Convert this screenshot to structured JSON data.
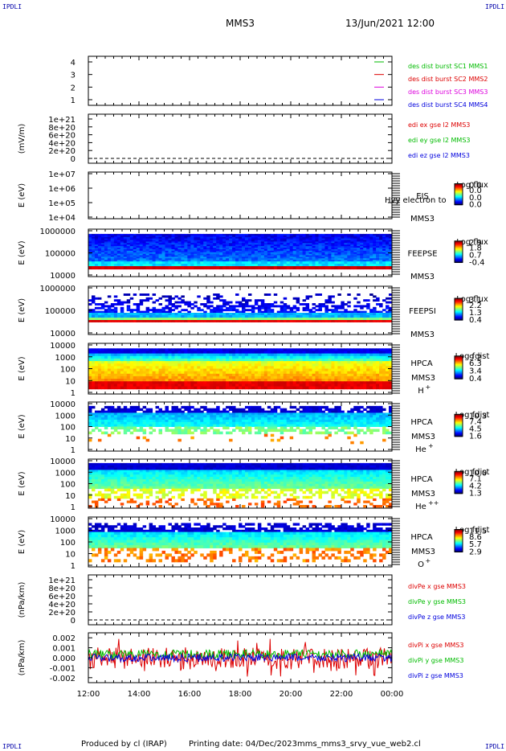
{
  "header": {
    "corner_tl": "IPDLI",
    "corner_tr": "IPDLI",
    "corner_bl": "IPDLI",
    "corner_br": "IPDLI",
    "title": "MMS3",
    "datetime": "13/Jun/2021 12:00"
  },
  "footer": {
    "produced": "Produced by cl (IRAP)",
    "printing": "Printing date: 04/Dec/2023",
    "filename": "mms_mms3_srvy_vue_web2.cl"
  },
  "chart_data": [
    {
      "type": "line",
      "id": "sc",
      "ylabel": "",
      "yticks": [
        "1",
        "2",
        "3",
        "4"
      ],
      "ylim": [
        0.5,
        4.5
      ],
      "legend": [
        {
          "name": "des dist burst SC1 MMS1",
          "color": "#00bb00",
          "y": 4
        },
        {
          "name": "des dist burst SC2 MMS2",
          "color": "#dd0000",
          "y": 3
        },
        {
          "name": "des dist burst SC3 MMS3",
          "color": "#dd00dd",
          "y": 2
        },
        {
          "name": "des dist burst SC4 MMS4",
          "color": "#0000dd",
          "y": 1
        }
      ],
      "series": [
        {
          "name": "des dist burst SC1 MMS1",
          "values": []
        },
        {
          "name": "des dist burst SC2 MMS2",
          "values": []
        },
        {
          "name": "des dist burst SC3 MMS3",
          "values": []
        },
        {
          "name": "des dist burst SC4 MMS4",
          "values": []
        }
      ]
    },
    {
      "type": "line",
      "id": "edi",
      "ylabel": "(mV/m)",
      "yticks": [
        "0",
        "2e+20",
        "4e+20",
        "6e+20",
        "8e+20",
        "1e+21"
      ],
      "ylim": [
        -5e+19,
        1.05e+21
      ],
      "legend": [
        {
          "name": "edi ex gse l2 MMS3",
          "color": "#dd0000"
        },
        {
          "name": "edi ey gse l2 MMS3",
          "color": "#00bb00"
        },
        {
          "name": "edi ez gse l2 MMS3",
          "color": "#0000dd"
        }
      ],
      "zero_line": true
    },
    {
      "type": "heatmap",
      "id": "eis",
      "ylabel": "E (eV)",
      "yticks": [
        "1e+04",
        "1e+05",
        "1e+06",
        "1e+07"
      ],
      "scale": "log",
      "labels": [
        "EIS",
        "MMS3"
      ],
      "overlay_text": "Hvy electron to",
      "colorbar_title": "Log flux",
      "colorbar_ticks": [
        "0.0",
        "0.0",
        "0.0",
        "0.0"
      ],
      "empty": true
    },
    {
      "type": "heatmap",
      "id": "feepse",
      "ylabel": "E (eV)",
      "yticks": [
        "10000",
        "100000",
        "1000000"
      ],
      "scale": "log",
      "labels": [
        "FEEPSE",
        "MMS3"
      ],
      "colorbar_title": "Log flux",
      "colorbar_ticks": [
        "2.9",
        "1.8",
        "0.7",
        "-0.4"
      ]
    },
    {
      "type": "heatmap",
      "id": "feepsi",
      "ylabel": "E (eV)",
      "yticks": [
        "10000",
        "100000",
        "1000000"
      ],
      "scale": "log",
      "labels": [
        "FEEPSI",
        "MMS3"
      ],
      "colorbar_title": "Log flux",
      "colorbar_ticks": [
        "3.1",
        "2.2",
        "1.3",
        "0.4"
      ]
    },
    {
      "type": "heatmap",
      "id": "hpca_h",
      "ylabel": "E (eV)",
      "yticks": [
        "1",
        "10",
        "100",
        "1000",
        "10000"
      ],
      "scale": "log",
      "labels": [
        "HPCA",
        "MMS3"
      ],
      "species": "H",
      "species_sup": "+",
      "colorbar_title": "Log fdist",
      "colorbar_ticks": [
        "9.2",
        "6.3",
        "3.4",
        "0.4"
      ]
    },
    {
      "type": "heatmap",
      "id": "hpca_he",
      "ylabel": "E (eV)",
      "yticks": [
        "1",
        "10",
        "100",
        "1000",
        "10000"
      ],
      "scale": "log",
      "labels": [
        "HPCA",
        "MMS3"
      ],
      "species": "He",
      "species_sup": "+",
      "colorbar_title": "Log fdist",
      "colorbar_ticks": [
        "10.3",
        "7.4",
        "4.5",
        "1.6"
      ]
    },
    {
      "type": "heatmap",
      "id": "hpca_hepp",
      "ylabel": "E (eV)",
      "yticks": [
        "1",
        "10",
        "100",
        "1000",
        "10000"
      ],
      "scale": "log",
      "labels": [
        "HPCA",
        "MMS3"
      ],
      "species": "He",
      "species_sup": "++",
      "colorbar_title": "Log fdist",
      "colorbar_ticks": [
        "10.0",
        "7.1",
        "4.2",
        "1.3"
      ]
    },
    {
      "type": "heatmap",
      "id": "hpca_o",
      "ylabel": "E (eV)",
      "yticks": [
        "1",
        "10",
        "100",
        "1000",
        "10000"
      ],
      "scale": "log",
      "labels": [
        "HPCA",
        "MMS3"
      ],
      "species": "O",
      "species_sup": "+",
      "colorbar_title": "Log fdist",
      "colorbar_ticks": [
        "11.5",
        "8.6",
        "5.7",
        "2.9"
      ]
    },
    {
      "type": "line",
      "id": "divpe",
      "ylabel": "(nPa/km)",
      "yticks": [
        "0",
        "2e+20",
        "4e+20",
        "6e+20",
        "8e+20",
        "1e+21"
      ],
      "ylim": [
        -5e+19,
        1.05e+21
      ],
      "legend": [
        {
          "name": "divPe x gse MMS3",
          "color": "#dd0000"
        },
        {
          "name": "divPe y gse MMS3",
          "color": "#00bb00"
        },
        {
          "name": "divPe z gse MMS3",
          "color": "#0000dd"
        }
      ],
      "zero_line": true
    },
    {
      "type": "line",
      "id": "divpi",
      "ylabel": "(nPa/km)",
      "yticks": [
        "-0.002",
        "-0.001",
        "0.000",
        "0.001",
        "0.002"
      ],
      "ylim": [
        -0.0025,
        0.0025
      ],
      "legend": [
        {
          "name": "divPi x gse MMS3",
          "color": "#dd0000"
        },
        {
          "name": "divPi y gse MMS3",
          "color": "#00bb00"
        },
        {
          "name": "divPi z gse MMS3",
          "color": "#0000dd"
        }
      ]
    }
  ],
  "xaxis": {
    "ticks": [
      "12:00",
      "14:00",
      "16:00",
      "18:00",
      "20:00",
      "22:00",
      "00:00"
    ]
  }
}
